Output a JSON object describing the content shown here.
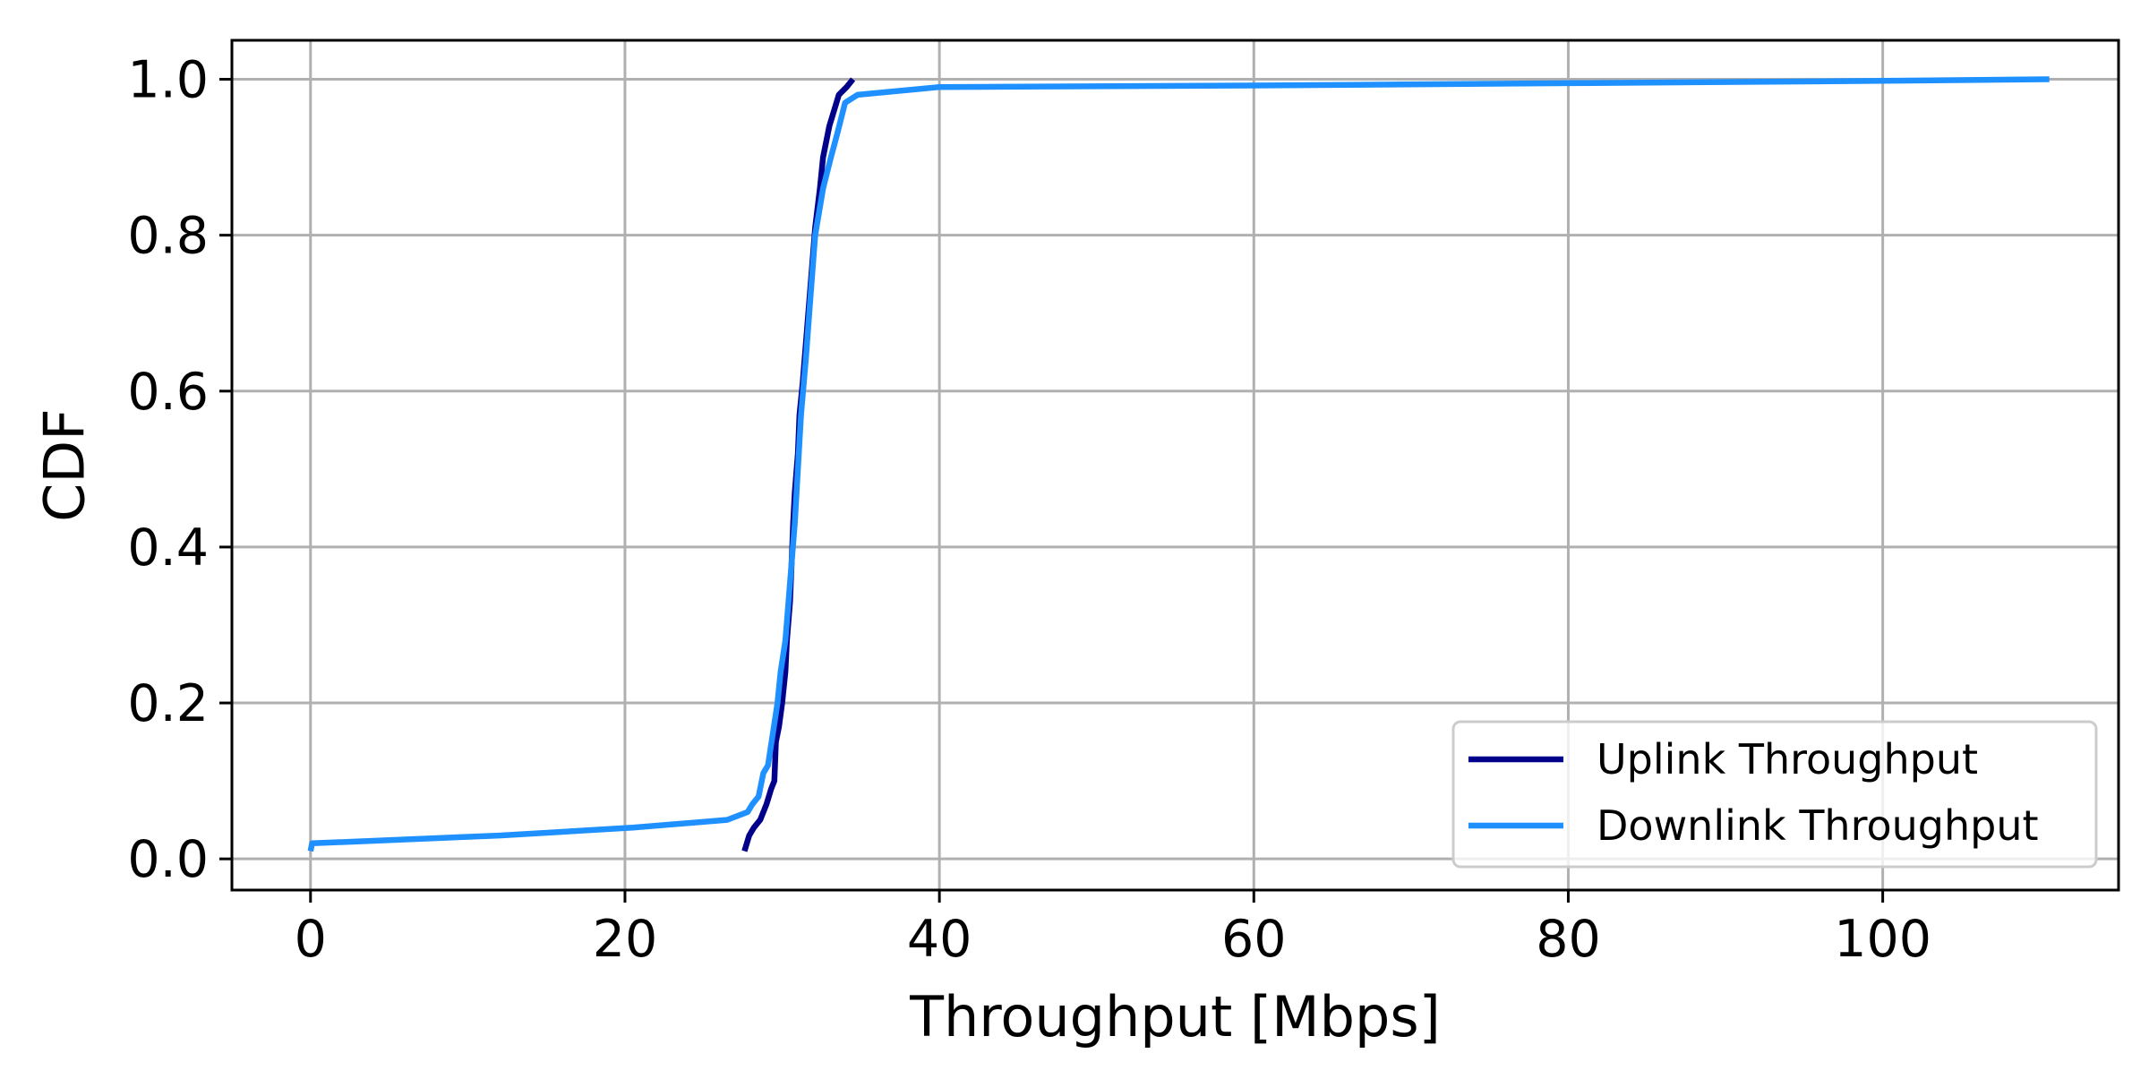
{
  "chart_data": {
    "type": "line",
    "title": "",
    "xlabel": "Throughput [Mbps]",
    "ylabel": "CDF",
    "xlim": [
      -5,
      115
    ],
    "ylim": [
      -0.04,
      1.05
    ],
    "x_ticks": [
      0,
      20,
      40,
      60,
      80,
      100
    ],
    "y_ticks": [
      0.0,
      0.2,
      0.4,
      0.6,
      0.8,
      1.0
    ],
    "x_tick_labels": [
      "0",
      "20",
      "40",
      "60",
      "80",
      "100"
    ],
    "y_tick_labels": [
      "0.0",
      "0.2",
      "0.4",
      "0.6",
      "0.8",
      "1.0"
    ],
    "grid": true,
    "legend_position": "bottom-right",
    "series": [
      {
        "name": "Uplink Throughput",
        "color": "#00008b",
        "x": [
          27.6,
          27.9,
          28.2,
          28.6,
          29.0,
          29.3,
          29.5,
          29.6,
          29.8,
          30.0,
          30.2,
          30.3,
          30.5,
          30.6,
          30.7,
          30.8,
          31.0,
          31.1,
          31.3,
          31.5,
          31.7,
          31.9,
          32.1,
          32.4,
          32.6,
          33.0,
          33.3,
          33.6,
          34.1,
          34.5
        ],
        "y": [
          0.01,
          0.03,
          0.04,
          0.05,
          0.07,
          0.09,
          0.1,
          0.15,
          0.17,
          0.2,
          0.24,
          0.28,
          0.33,
          0.38,
          0.43,
          0.47,
          0.52,
          0.57,
          0.61,
          0.66,
          0.71,
          0.76,
          0.81,
          0.86,
          0.9,
          0.94,
          0.96,
          0.98,
          0.99,
          1.0
        ]
      },
      {
        "name": "Downlink Throughput",
        "color": "#1e90ff",
        "x": [
          0.0,
          0.1,
          12.0,
          20.5,
          26.5,
          27.8,
          28.1,
          28.5,
          28.8,
          29.1,
          29.4,
          29.7,
          29.9,
          30.2,
          30.4,
          30.6,
          30.8,
          31.0,
          31.2,
          31.5,
          31.8,
          32.1,
          32.6,
          33.1,
          33.5,
          34.0,
          34.8,
          40.0,
          60.0,
          80.0,
          100.0,
          110.6
        ],
        "y": [
          0.01,
          0.02,
          0.03,
          0.04,
          0.05,
          0.06,
          0.07,
          0.08,
          0.11,
          0.12,
          0.16,
          0.2,
          0.24,
          0.28,
          0.33,
          0.38,
          0.43,
          0.5,
          0.57,
          0.64,
          0.72,
          0.8,
          0.86,
          0.9,
          0.93,
          0.97,
          0.98,
          0.99,
          0.992,
          0.995,
          0.998,
          1.0
        ]
      }
    ]
  }
}
